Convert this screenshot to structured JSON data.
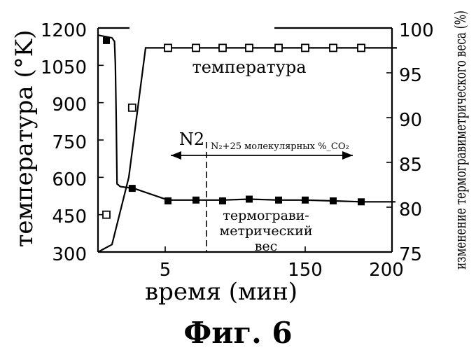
{
  "figure_title": "Фиг. 6",
  "chart_data": {
    "type": "line",
    "xlabel": "время (мин)",
    "ylabel_left": "температура (°K)",
    "ylabel_right": "изменение термогравиметрического веса (%)",
    "x_ticks": [
      "5",
      "150",
      "200"
    ],
    "y_left_ticks": [
      "1200",
      "1050",
      "900",
      "750",
      "600",
      "450",
      "300"
    ],
    "y_right_ticks": [
      "100",
      "95",
      "90",
      "85",
      "80",
      "75"
    ],
    "ylim_left": [
      300,
      1200
    ],
    "ylim_right": [
      75,
      100
    ],
    "grid": false,
    "series": [
      {
        "name": "температура",
        "axis": "left",
        "marker": "open-square",
        "line_x": [
          0,
          1,
          2,
          3,
          4,
          5,
          6,
          7,
          8,
          9,
          10,
          11
        ],
        "line_y": [
          300,
          330,
          600,
          1120,
          1120,
          1120,
          1120,
          1120,
          1120,
          1120,
          1120,
          1120
        ],
        "marker_x": [
          0.6,
          2.2,
          4,
          5,
          6,
          7,
          8,
          9,
          10,
          11
        ],
        "marker_y": [
          450,
          880,
          1120,
          1120,
          1120,
          1120,
          1120,
          1120,
          1120,
          1120
        ]
      },
      {
        "name": "термогравиметрический вес",
        "label_lines": [
          "термограви-",
          "метрический",
          "вес"
        ],
        "axis": "right",
        "marker": "filled-square",
        "line_x": [
          0,
          1,
          1.15,
          1.2,
          1.25,
          1.3,
          1.5,
          2.3,
          4,
          5,
          6,
          7,
          8,
          9,
          10,
          11
        ],
        "line_y": [
          99.2,
          98.9,
          98.5,
          96,
          90,
          82.6,
          82.3,
          82.1,
          80.8,
          80.8,
          80.8,
          80.9,
          80.8,
          80.8,
          80.7,
          80.6
        ],
        "marker_x": [
          0.6,
          2.2,
          4,
          5,
          6,
          7,
          8,
          9,
          10,
          11
        ],
        "marker_y": [
          98.6,
          82.1,
          80.7,
          80.8,
          80.7,
          80.9,
          80.8,
          80.8,
          80.7,
          80.6
        ]
      }
    ],
    "annotations": {
      "left_region": "N2",
      "right_region": "N₂+25 молекулярных %_CO₂"
    }
  }
}
